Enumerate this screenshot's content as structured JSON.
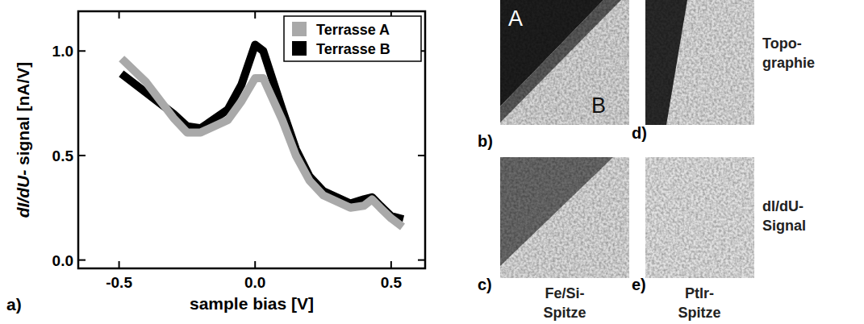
{
  "chart_data": {
    "type": "line",
    "x_label": "sample bias [V]",
    "y_label": "dI/dU- signal [nA/V]",
    "annotations": [
      "a)"
    ],
    "x": [
      -0.48,
      -0.4,
      -0.3,
      -0.25,
      -0.2,
      -0.1,
      -0.05,
      0.0,
      0.03,
      0.1,
      0.15,
      0.2,
      0.25,
      0.3,
      0.35,
      0.4,
      0.43,
      0.46,
      0.5,
      0.53
    ],
    "series": [
      {
        "name": "Terrasse A",
        "color": "#a9a9a9",
        "values": [
          0.95,
          0.85,
          0.68,
          0.61,
          0.61,
          0.67,
          0.76,
          0.87,
          0.87,
          0.67,
          0.5,
          0.38,
          0.31,
          0.28,
          0.25,
          0.26,
          0.29,
          0.25,
          0.2,
          0.17
        ]
      },
      {
        "name": "Terrasse B",
        "color": "#000000",
        "values": [
          0.88,
          0.8,
          0.7,
          0.64,
          0.63,
          0.72,
          0.84,
          1.03,
          1.0,
          0.72,
          0.53,
          0.4,
          0.33,
          0.3,
          0.27,
          0.29,
          0.3,
          0.26,
          0.21,
          0.2
        ]
      }
    ],
    "xlim": [
      -0.65,
      0.625
    ],
    "ylim": [
      -0.04,
      1.19
    ],
    "xticks": [
      -0.5,
      {
        "value": 0,
        "label": "0.0"
      },
      0.5
    ],
    "yticks": [
      {
        "value": 0,
        "label": "0.0"
      },
      0.5,
      {
        "value": 1,
        "label": "1.0"
      }
    ],
    "legend": "upper right",
    "grid": false
  },
  "images": [
    {
      "letter": "b)",
      "markers": [
        "A",
        "B"
      ]
    },
    {
      "letter": "c)"
    },
    {
      "letter": "d)"
    },
    {
      "letter": "e)"
    }
  ],
  "row_labels": [
    [
      "Topo-",
      "graphie"
    ],
    [
      "dI/dU-",
      "Signal"
    ]
  ],
  "column_labels": [
    [
      "Fe/Si-",
      "Spitze"
    ],
    [
      "PtIr-",
      "Spitze"
    ]
  ]
}
